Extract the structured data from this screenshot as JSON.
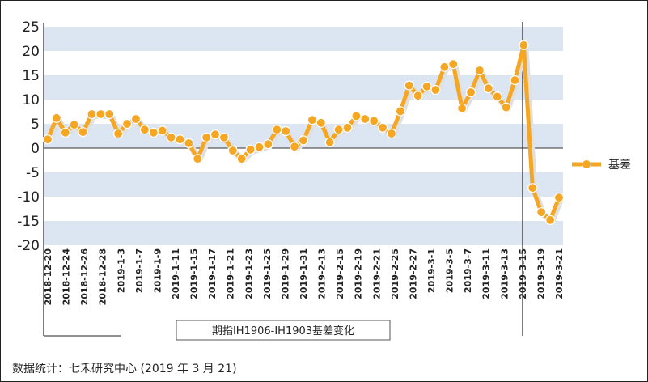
{
  "chart_data": {
    "type": "line",
    "title": "期指IH1906-IH1903基差变化",
    "xlabel": "",
    "ylabel": "",
    "ylim": [
      -20,
      25
    ],
    "yticks": [
      25,
      20,
      15,
      10,
      5,
      0,
      -5,
      -10,
      -15,
      -20
    ],
    "grid": "alternating horizontal bands",
    "legend_position": "right",
    "xtick_labels": [
      "2018-12-20",
      "2018-12-24",
      "2018-12-26",
      "2018-12-28",
      "2019-1-3",
      "2019-1-7",
      "2019-1-9",
      "2019-1-11",
      "2019-1-15",
      "2019-1-17",
      "2019-1-21",
      "2019-1-23",
      "2019-1-25",
      "2019-1-29",
      "2019-1-31",
      "2019-2-13",
      "2019-2-15",
      "2019-2-19",
      "2019-2-21",
      "2019-2-25",
      "2019-2-27",
      "2019-3-1",
      "2019-3-5",
      "2019-3-7",
      "2019-3-11",
      "2019-3-13",
      "2019-3-15",
      "2019-3-19",
      "2019-3-21"
    ],
    "series": [
      {
        "name": "基差",
        "color": "#F5A623",
        "values": [
          1.8,
          6.2,
          3.2,
          4.8,
          3.3,
          7.0,
          7.0,
          7.0,
          3.0,
          5.0,
          6.0,
          3.8,
          3.2,
          3.6,
          2.2,
          1.8,
          1.0,
          -2.2,
          2.2,
          2.8,
          2.2,
          -0.5,
          -2.2,
          -0.3,
          0.2,
          0.8,
          3.8,
          3.5,
          0.3,
          1.6,
          5.8,
          5.2,
          1.2,
          3.8,
          4.2,
          6.6,
          6.0,
          5.6,
          4.2,
          3.0,
          7.6,
          12.9,
          10.8,
          12.7,
          12.0,
          16.7,
          17.3,
          8.2,
          11.5,
          16.0,
          12.3,
          10.6,
          8.4,
          14.0,
          21.2,
          -8.2,
          -13.2,
          -14.8,
          -10.2
        ]
      }
    ]
  },
  "footer": {
    "note": "数据统计：七禾研究中心 (2019 年 3 月 21)"
  },
  "colors": {
    "band": "#DCE6F2",
    "line": "#F5A623"
  }
}
